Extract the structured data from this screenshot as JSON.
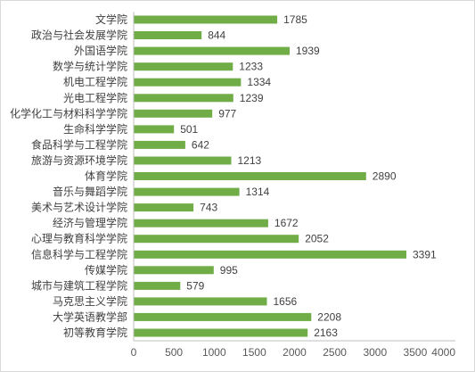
{
  "chart_data": {
    "type": "bar",
    "orientation": "horizontal",
    "title": "",
    "xlabel": "",
    "ylabel": "",
    "categories": [
      "文学院",
      "政治与社会发展学院",
      "外国语学院",
      "数学与统计学院",
      "机电工程学院",
      "光电工程学院",
      "化学化工与材料科学学院",
      "生命科学学院",
      "食品科学与工程学院",
      "旅游与资源环境学院",
      "体育学院",
      "音乐与舞蹈学院",
      "美术与艺术设计学院",
      "经济与管理学院",
      "心理与教育科学学院",
      "信息科学与工程学院",
      "传媒学院",
      "城市与建筑工程学院",
      "马克思主义学院",
      "大学英语教学部",
      "初等教育学院"
    ],
    "values": [
      1785,
      844,
      1939,
      1233,
      1334,
      1239,
      977,
      501,
      642,
      1213,
      2890,
      1314,
      743,
      1672,
      2052,
      3391,
      995,
      579,
      1656,
      2208,
      2163
    ],
    "xlim": [
      0,
      4000
    ],
    "xticks": [
      0,
      500,
      1000,
      1500,
      2000,
      2500,
      3000,
      3500,
      4000
    ],
    "bar_color": "#70ad47",
    "grid": false,
    "legend": "none"
  }
}
